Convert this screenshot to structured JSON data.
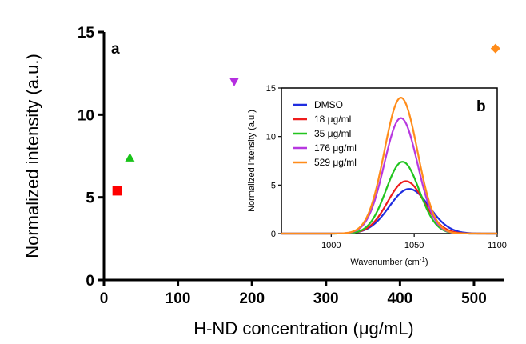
{
  "chart_data": [
    {
      "type": "scatter",
      "panel_label": "a",
      "xlabel": "H-ND concentration (μg/mL)",
      "ylabel": "Normalized intensity (a.u.)",
      "xlim": [
        0,
        540
      ],
      "ylim": [
        0,
        15
      ],
      "xticks": [
        "0",
        "100",
        "200",
        "300",
        "400",
        "500"
      ],
      "yticks": [
        "0",
        "5",
        "10",
        "15"
      ],
      "points": [
        {
          "x": 18,
          "y": 5.4,
          "marker": "square",
          "color": "#ff0000"
        },
        {
          "x": 35,
          "y": 7.4,
          "marker": "triangle-up",
          "color": "#19c319"
        },
        {
          "x": 176,
          "y": 12.0,
          "marker": "triangle-down",
          "color": "#b52ee0"
        },
        {
          "x": 529,
          "y": 14.0,
          "marker": "diamond",
          "color": "#ff8c1a"
        }
      ],
      "grid": false
    },
    {
      "type": "line",
      "panel_label": "b",
      "inset": true,
      "xlabel": "Wavenumber (cm",
      "xlabel_sup": "-1",
      "xlabel_end": ")",
      "ylabel": "Normalized intensity (a.u.)",
      "xlim": [
        970,
        1100
      ],
      "ylim": [
        0,
        15
      ],
      "xticks": [
        "1000",
        "1050",
        "1100"
      ],
      "yticks": [
        "0",
        "5",
        "10",
        "15"
      ],
      "legend_position": "top-left",
      "series": [
        {
          "name": "DMSO",
          "color": "#1f2de0",
          "peak": 4.6,
          "center": 1047,
          "width": 12
        },
        {
          "name": "18 μg/ml",
          "color": "#ee1c1c",
          "peak": 5.4,
          "center": 1045,
          "width": 11
        },
        {
          "name": "35 μg/ml",
          "color": "#22c41f",
          "peak": 7.4,
          "center": 1043,
          "width": 10
        },
        {
          "name": "176 μg/ml",
          "color": "#b738e0",
          "peak": 11.9,
          "center": 1042,
          "width": 10
        },
        {
          "name": "529 μg/ml",
          "color": "#ff8c1a",
          "peak": 14.0,
          "center": 1042,
          "width": 10
        }
      ],
      "grid": false
    }
  ]
}
